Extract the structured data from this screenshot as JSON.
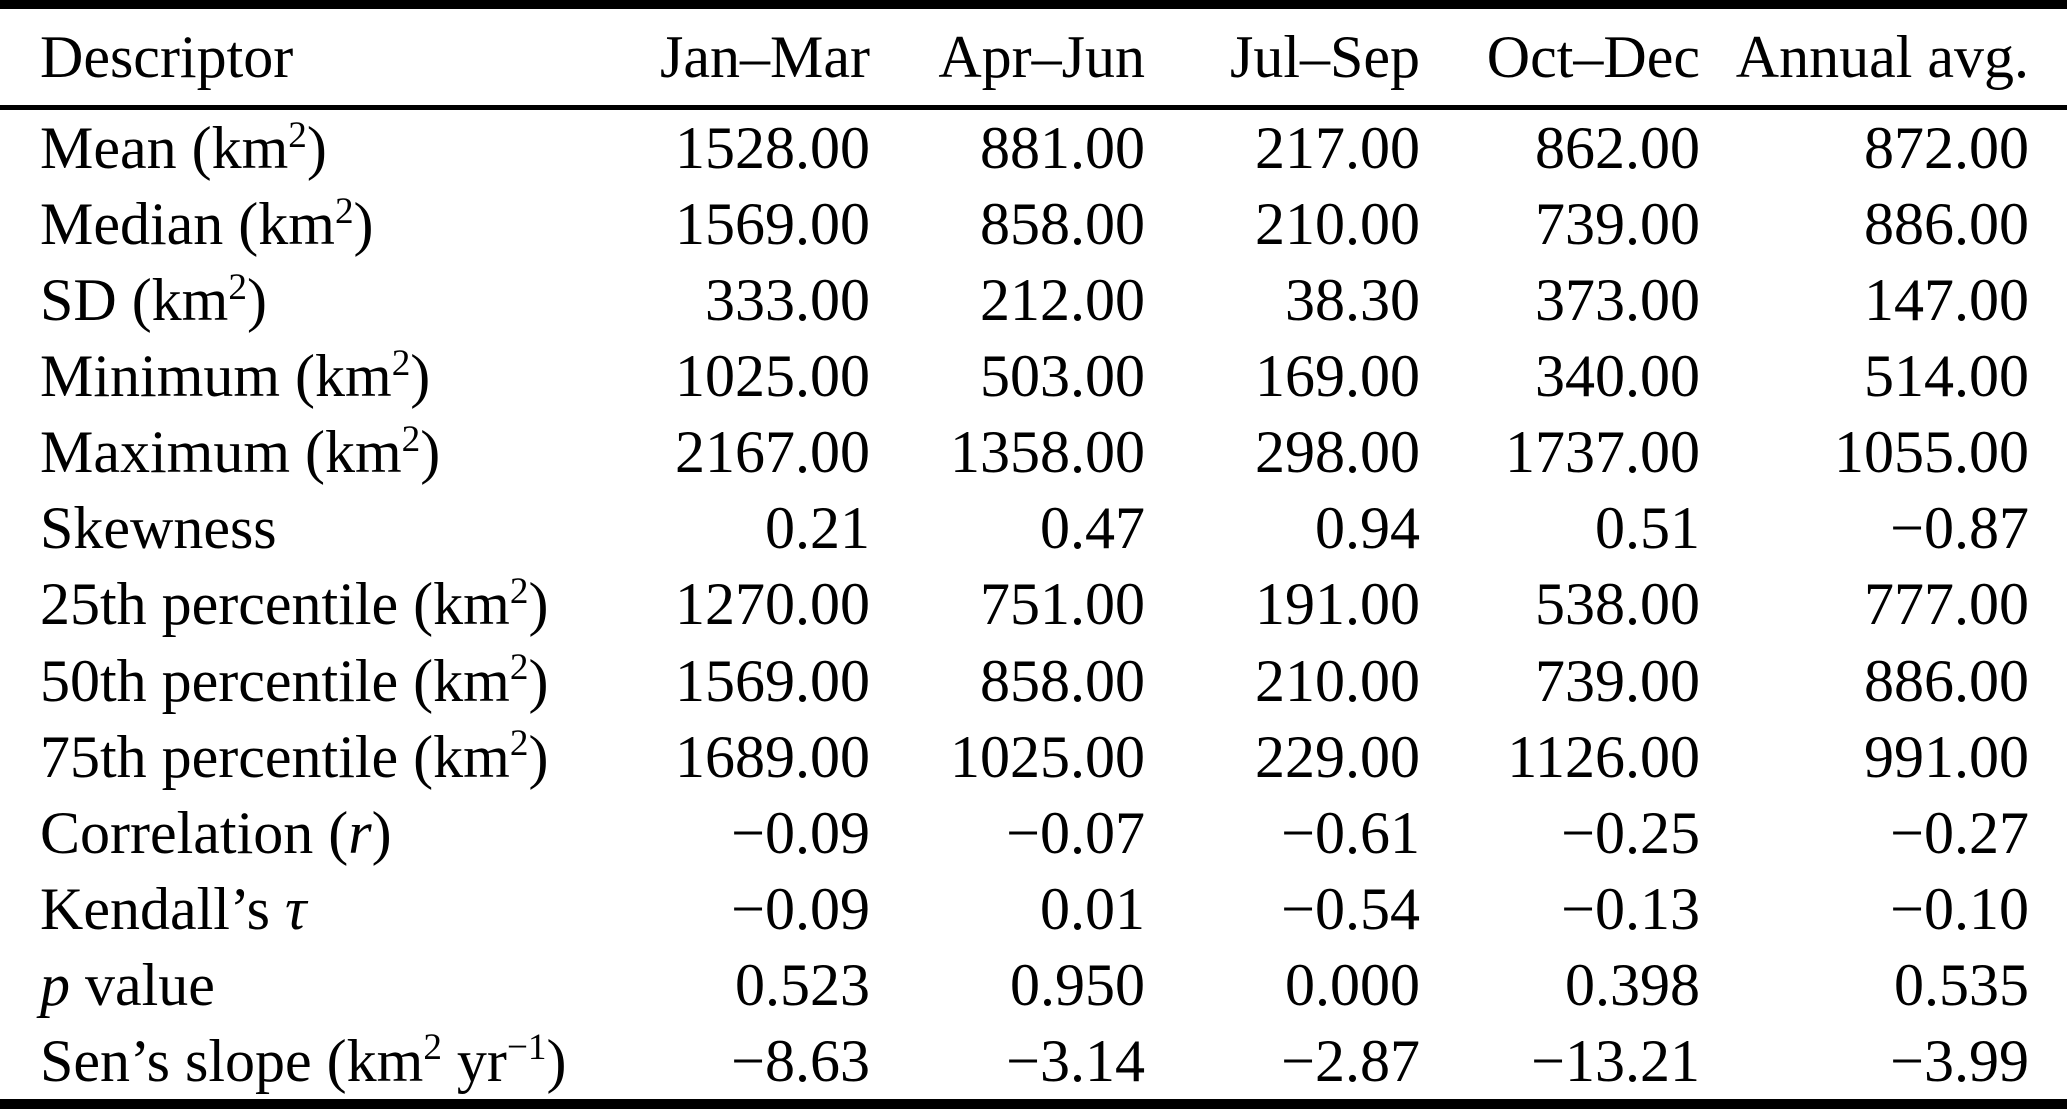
{
  "table": {
    "columns": [
      {
        "key": "descriptor",
        "label": "Descriptor",
        "align": "left"
      },
      {
        "key": "q1",
        "label": "Jan–Mar",
        "align": "right"
      },
      {
        "key": "q2",
        "label": "Apr–Jun",
        "align": "right"
      },
      {
        "key": "q3",
        "label": "Jul–Sep",
        "align": "right"
      },
      {
        "key": "q4",
        "label": "Oct–Dec",
        "align": "right"
      },
      {
        "key": "annual",
        "label": "Annual avg.",
        "align": "right"
      }
    ],
    "rows": [
      {
        "descriptor": "Mean (km<sup>2</sup>)",
        "q1": "1528.00",
        "q2": "881.00",
        "q3": "217.00",
        "q4": "862.00",
        "annual": "872.00"
      },
      {
        "descriptor": "Median (km<sup>2</sup>)",
        "q1": "1569.00",
        "q2": "858.00",
        "q3": "210.00",
        "q4": "739.00",
        "annual": "886.00"
      },
      {
        "descriptor": "SD (km<sup>2</sup>)",
        "q1": "333.00",
        "q2": "212.00",
        "q3": "38.30",
        "q4": "373.00",
        "annual": "147.00"
      },
      {
        "descriptor": "Minimum (km<sup>2</sup>)",
        "q1": "1025.00",
        "q2": "503.00",
        "q3": "169.00",
        "q4": "340.00",
        "annual": "514.00"
      },
      {
        "descriptor": "Maximum (km<sup>2</sup>)",
        "q1": "2167.00",
        "q2": "1358.00",
        "q3": "298.00",
        "q4": "1737.00",
        "annual": "1055.00"
      },
      {
        "descriptor": "Skewness",
        "q1": "0.21",
        "q2": "0.47",
        "q3": "0.94",
        "q4": "0.51",
        "annual": "−0.87"
      },
      {
        "descriptor": "25th percentile (km<sup>2</sup>)",
        "q1": "1270.00",
        "q2": "751.00",
        "q3": "191.00",
        "q4": "538.00",
        "annual": "777.00"
      },
      {
        "descriptor": "50th percentile (km<sup>2</sup>)",
        "q1": "1569.00",
        "q2": "858.00",
        "q3": "210.00",
        "q4": "739.00",
        "annual": "886.00"
      },
      {
        "descriptor": "75th percentile (km<sup>2</sup>)",
        "q1": "1689.00",
        "q2": "1025.00",
        "q3": "229.00",
        "q4": "1126.00",
        "annual": "991.00"
      },
      {
        "descriptor": "Correlation (<i>r</i>)",
        "q1": "−0.09",
        "q2": "−0.07",
        "q3": "−0.61",
        "q4": "−0.25",
        "annual": "−0.27"
      },
      {
        "descriptor": "Kendall’s <i>τ</i>",
        "q1": "−0.09",
        "q2": "0.01",
        "q3": "−0.54",
        "q4": "−0.13",
        "annual": "−0.10"
      },
      {
        "descriptor": "<i>p</i> value",
        "q1": "0.523",
        "q2": "0.950",
        "q3": "0.000",
        "q4": "0.398",
        "annual": "0.535"
      },
      {
        "descriptor": "Sen’s slope (km<sup>2</sup> yr<sup>−1</sup>)",
        "q1": "−8.63",
        "q2": "−3.14",
        "q3": "−2.87",
        "q4": "−13.21",
        "annual": "−3.99"
      }
    ]
  }
}
